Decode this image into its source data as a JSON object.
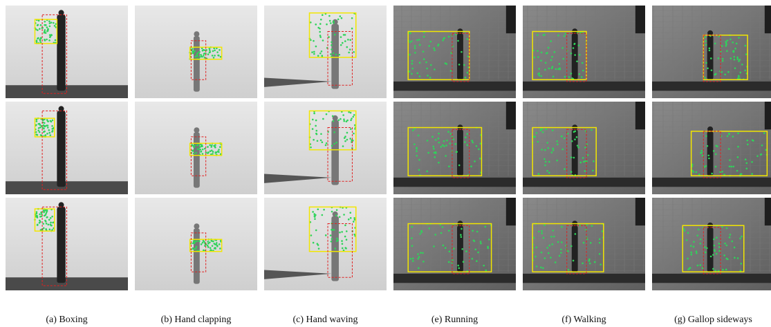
{
  "figure": {
    "captions": [
      "(a) Boxing",
      "(b) Hand clapping",
      "(c) Hand waving",
      "(e) Running",
      "(f) Walking",
      "(g) Gallop sideways"
    ]
  }
}
